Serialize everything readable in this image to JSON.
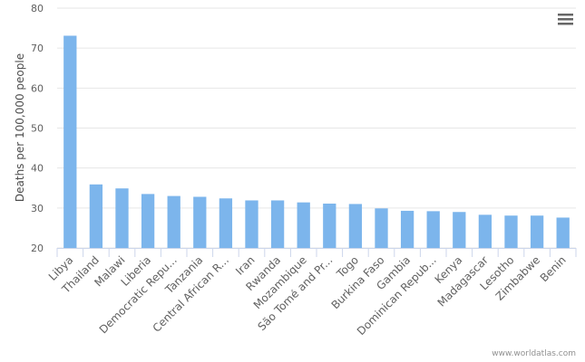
{
  "chart_data": {
    "type": "bar",
    "y_label": "Deaths per 100,000 people",
    "credits": "www.worldatlas.com",
    "categories": [
      "Libya",
      "Thailand",
      "Malawi",
      "Liberia",
      "Democratic Repu...",
      "Tanzania",
      "Central African R...",
      "Iran",
      "Rwanda",
      "Mozambique",
      "São Tomé and Pr...",
      "Togo",
      "Burkina Faso",
      "Gambia",
      "Dominican Repub...",
      "Kenya",
      "Madagascar",
      "Lesotho",
      "Zimbabwe",
      "Benin"
    ],
    "values": [
      73.1,
      35.9,
      34.9,
      33.5,
      33.0,
      32.8,
      32.4,
      31.9,
      31.9,
      31.4,
      31.1,
      31.0,
      29.9,
      29.3,
      29.2,
      29.0,
      28.3,
      28.1,
      28.1,
      27.6
    ],
    "color": "#7cb5ec",
    "ylim": [
      20,
      80
    ],
    "yticks": [
      20,
      30,
      40,
      50,
      60,
      70,
      80
    ],
    "grid": true
  }
}
